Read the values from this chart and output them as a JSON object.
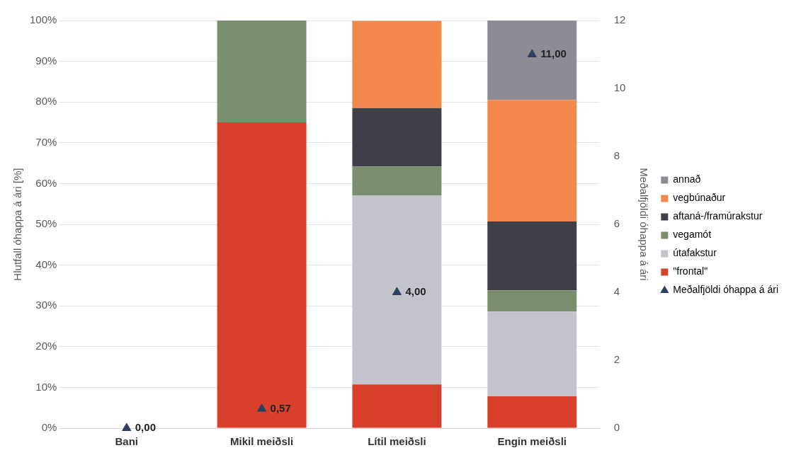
{
  "chart_data": {
    "type": "bar",
    "stacked": true,
    "categories": [
      "Bani",
      "Mikil meiðsli",
      "Lítil meiðsli",
      "Engin meiðsli"
    ],
    "ylabel": "Hlutfall óhappa á ári [%]",
    "y2label": "Meðalfjöldi óhappa á ári",
    "ylim": [
      0,
      100
    ],
    "yticks": [
      {
        "value": 0,
        "label": "0%"
      },
      {
        "value": 10,
        "label": "10%"
      },
      {
        "value": 20,
        "label": "20%"
      },
      {
        "value": 30,
        "label": "30%"
      },
      {
        "value": 40,
        "label": "40%"
      },
      {
        "value": 50,
        "label": "50%"
      },
      {
        "value": 60,
        "label": "60%"
      },
      {
        "value": 70,
        "label": "70%"
      },
      {
        "value": 80,
        "label": "80%"
      },
      {
        "value": 90,
        "label": "90%"
      },
      {
        "value": 100,
        "label": "100%"
      }
    ],
    "y2lim": [
      0,
      12
    ],
    "y2ticks": [
      0,
      2,
      4,
      6,
      8,
      10,
      12
    ],
    "grid": "y",
    "legend": "right",
    "series": [
      {
        "name": "\"frontal\"",
        "color": "#d8402c",
        "values": [
          0,
          75,
          10.7,
          7.8
        ]
      },
      {
        "name": "útafakstur",
        "color": "#c3c3cb",
        "values": [
          0,
          0,
          46.4,
          20.8
        ]
      },
      {
        "name": "vegamót",
        "color": "#7b8f6f",
        "values": [
          0,
          25,
          7.1,
          5.2
        ]
      },
      {
        "name": "aftaná-/framúrakstur",
        "color": "#3e3f47",
        "values": [
          0,
          0,
          14.3,
          16.9
        ]
      },
      {
        "name": "vegbúnaður",
        "color": "#f4874b",
        "values": [
          0,
          0,
          21.4,
          29.8
        ]
      },
      {
        "name": "annað",
        "color": "#8d8c95",
        "values": [
          0,
          0,
          0,
          19.5
        ]
      },
      {
        "name": "Meðalfjöldi óhappa á ári",
        "type": "scatter",
        "axis": "y2",
        "marker": "triangle",
        "color": "#2d4165",
        "x": [
          "Bani",
          "Mikil meiðsli",
          "Lítil meiðsli",
          "Engin meiðsli"
        ],
        "values": [
          0,
          0.57,
          4,
          11
        ],
        "value_labels": [
          "0,00",
          "0,57",
          "4,00",
          "11,00"
        ]
      }
    ]
  }
}
